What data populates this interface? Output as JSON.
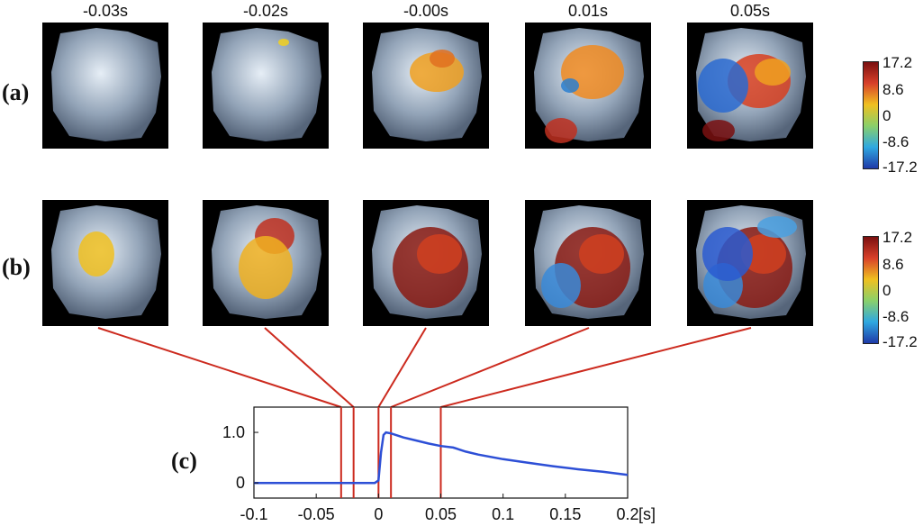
{
  "panel_times": [
    "-0.03s",
    "-0.02s",
    "-0.00s",
    "0.01s",
    "0.05s"
  ],
  "row_labels": {
    "a": "(a)",
    "b": "(b)",
    "c": "(c)"
  },
  "colorbar_ticks": [
    "17.2",
    "8.6",
    "0",
    "-8.6",
    "-17.2"
  ],
  "colors": {
    "marker_line": "#cc2a1e",
    "curve": "#2d4fd6",
    "colorbar_stops": [
      "#7a1010",
      "#d8402a",
      "#f0c020",
      "#8ad06a",
      "#2fa8e0",
      "#1f3aa8"
    ]
  },
  "chart_data": {
    "type": "line",
    "xlabel": "[s]",
    "ylabel": "",
    "xlim": [
      -0.1,
      0.2
    ],
    "ylim": [
      -0.3,
      1.5
    ],
    "x_ticks": [
      "-0.1",
      "-0.05",
      "0",
      "0.05",
      "0.1",
      "0.15",
      "0.2"
    ],
    "y_ticks": [
      "0",
      "1.0"
    ],
    "series": [
      {
        "x": [
          -0.1,
          -0.05,
          -0.01,
          -0.003,
          0.0,
          0.002,
          0.004,
          0.006,
          0.01,
          0.015,
          0.02,
          0.03,
          0.04,
          0.05,
          0.06,
          0.07,
          0.08,
          0.1,
          0.12,
          0.14,
          0.16,
          0.18,
          0.2
        ],
        "y": [
          0.0,
          0.0,
          0.0,
          0.0,
          0.05,
          0.6,
          0.95,
          1.0,
          0.98,
          0.94,
          0.9,
          0.84,
          0.78,
          0.73,
          0.7,
          0.62,
          0.56,
          0.47,
          0.4,
          0.33,
          0.27,
          0.22,
          0.16
        ]
      }
    ],
    "markers_x": [
      -0.03,
      -0.02,
      -0.0,
      0.01,
      0.05
    ]
  }
}
